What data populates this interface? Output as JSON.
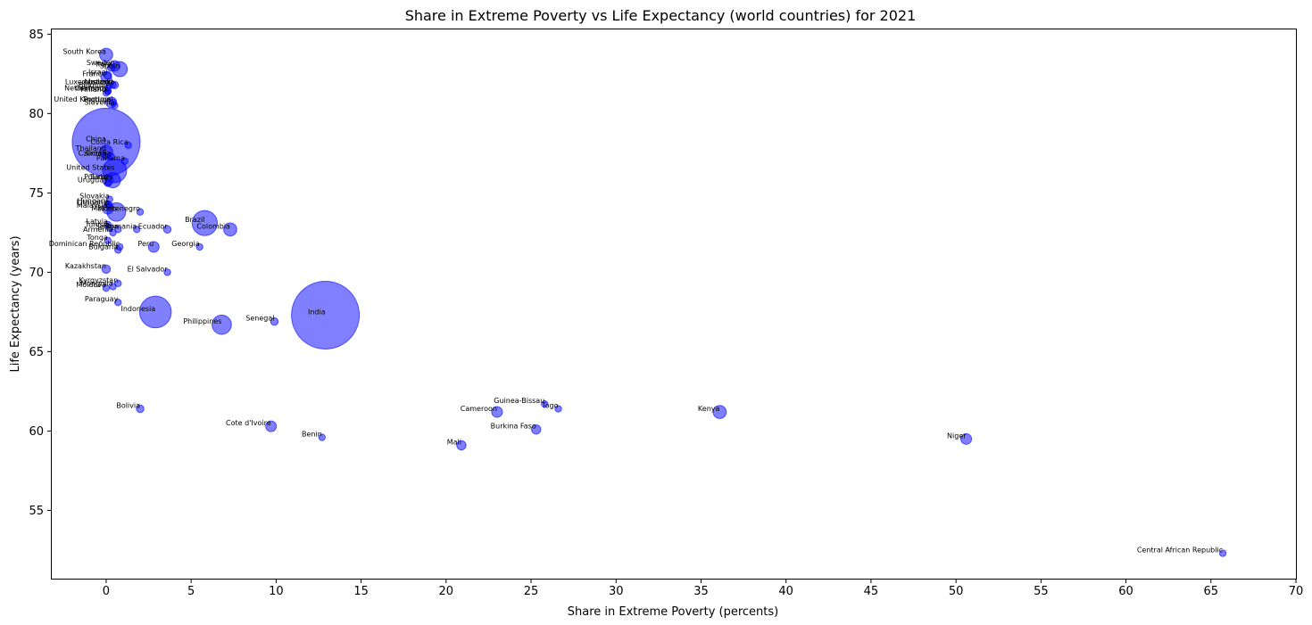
{
  "chart_data": {
    "type": "scatter",
    "title": "Share in Extreme Poverty vs Life Expectancy (world countries) for 2021",
    "xlabel": "Share in Extreme Poverty (percents)",
    "ylabel": "Life Expectancy (years)",
    "xlim": [
      -3.2,
      70
    ],
    "ylim": [
      50.7,
      85.3
    ],
    "xticks": [
      0,
      5,
      10,
      15,
      20,
      25,
      30,
      35,
      40,
      45,
      50,
      55,
      60,
      65,
      70
    ],
    "yticks": [
      55,
      60,
      65,
      70,
      75,
      80,
      85
    ],
    "grid": false,
    "marker_color": "#0000ff",
    "marker_alpha": 0.5,
    "points": [
      {
        "label": "South Korea",
        "x": 0.0,
        "y": 83.7,
        "s": 60
      },
      {
        "label": "Sweden",
        "x": 0.5,
        "y": 83.0,
        "s": 40
      },
      {
        "label": "Spain",
        "x": 0.8,
        "y": 82.8,
        "s": 80
      },
      {
        "label": "Italy",
        "x": 0.3,
        "y": 82.9,
        "s": 20
      },
      {
        "label": "Israel",
        "x": 0.1,
        "y": 82.4,
        "s": 20
      },
      {
        "label": "France",
        "x": 0.0,
        "y": 82.3,
        "s": 40
      },
      {
        "label": "Luxembourg",
        "x": 0.2,
        "y": 81.8,
        "s": 15
      },
      {
        "label": "Ireland",
        "x": 0.4,
        "y": 81.8,
        "s": 15
      },
      {
        "label": "Australia",
        "x": 0.5,
        "y": 81.8,
        "s": 20
      },
      {
        "label": "Belgium",
        "x": 0.1,
        "y": 81.6,
        "s": 15
      },
      {
        "label": "Netherlands",
        "x": 0.1,
        "y": 81.4,
        "s": 15
      },
      {
        "label": "Finland",
        "x": 0.0,
        "y": 81.3,
        "s": 15
      },
      {
        "label": "Germany",
        "x": 0.1,
        "y": 81.4,
        "s": 15
      },
      {
        "label": "United Kingdom",
        "x": 0.3,
        "y": 80.7,
        "s": 40
      },
      {
        "label": "Portugal",
        "x": 0.4,
        "y": 80.7,
        "s": 15
      },
      {
        "label": "Slovenia",
        "x": 0.5,
        "y": 80.5,
        "s": 15
      },
      {
        "label": "China",
        "x": 0.0,
        "y": 78.2,
        "s": 1600
      },
      {
        "label": "Costa Rica",
        "x": 1.3,
        "y": 78.0,
        "s": 15
      },
      {
        "label": "Thailand",
        "x": 0.0,
        "y": 77.6,
        "s": 60
      },
      {
        "label": "Croatia",
        "x": 0.3,
        "y": 77.3,
        "s": 15
      },
      {
        "label": "Czechia",
        "x": 0.0,
        "y": 77.3,
        "s": 15
      },
      {
        "label": "Panama",
        "x": 1.1,
        "y": 77.0,
        "s": 15
      },
      {
        "label": "United States",
        "x": 0.5,
        "y": 76.4,
        "s": 200
      },
      {
        "label": "Poland",
        "x": 0.1,
        "y": 75.8,
        "s": 40
      },
      {
        "label": "Turkey",
        "x": 0.4,
        "y": 75.8,
        "s": 80
      },
      {
        "label": "Uruguay",
        "x": 0.1,
        "y": 75.6,
        "s": 15
      },
      {
        "label": "Slovakia",
        "x": 0.2,
        "y": 74.6,
        "s": 15
      },
      {
        "label": "Hungary",
        "x": 0.1,
        "y": 74.3,
        "s": 15
      },
      {
        "label": "Lithuania",
        "x": 0.2,
        "y": 74.2,
        "s": 15
      },
      {
        "label": "Malaysia",
        "x": 0.1,
        "y": 74.0,
        "s": 40
      },
      {
        "label": "Mexico",
        "x": 0.6,
        "y": 73.8,
        "s": 120
      },
      {
        "label": "Montenegro",
        "x": 2.0,
        "y": 73.8,
        "s": 15
      },
      {
        "label": "Brazil",
        "x": 5.8,
        "y": 73.1,
        "s": 220
      },
      {
        "label": "Colombia",
        "x": 7.3,
        "y": 72.7,
        "s": 60
      },
      {
        "label": "Latvia",
        "x": 0.1,
        "y": 73.0,
        "s": 15
      },
      {
        "label": "Tunisia",
        "x": 0.2,
        "y": 72.8,
        "s": 15
      },
      {
        "label": "Serbia",
        "x": 0.7,
        "y": 72.7,
        "s": 15
      },
      {
        "label": "Romania",
        "x": 1.8,
        "y": 72.7,
        "s": 15
      },
      {
        "label": "Ecuador",
        "x": 3.6,
        "y": 72.7,
        "s": 20
      },
      {
        "label": "Armenia",
        "x": 0.4,
        "y": 72.5,
        "s": 15
      },
      {
        "label": "Tonga",
        "x": 0.1,
        "y": 72.0,
        "s": 15
      },
      {
        "label": "Dominican Republic",
        "x": 0.8,
        "y": 71.6,
        "s": 15
      },
      {
        "label": "Bulgaria",
        "x": 0.7,
        "y": 71.4,
        "s": 15
      },
      {
        "label": "Peru",
        "x": 2.8,
        "y": 71.6,
        "s": 40
      },
      {
        "label": "Georgia",
        "x": 5.5,
        "y": 71.6,
        "s": 15
      },
      {
        "label": "Kazakhstan",
        "x": 0.0,
        "y": 70.2,
        "s": 25
      },
      {
        "label": "El Salvador",
        "x": 3.6,
        "y": 70.0,
        "s": 15
      },
      {
        "label": "Kyrgyzstan",
        "x": 0.7,
        "y": 69.3,
        "s": 15
      },
      {
        "label": "Mongolia",
        "x": 0.4,
        "y": 69.1,
        "s": 15
      },
      {
        "label": "Moldova",
        "x": 0.0,
        "y": 69.0,
        "s": 15
      },
      {
        "label": "Paraguay",
        "x": 0.7,
        "y": 68.1,
        "s": 15
      },
      {
        "label": "Indonesia",
        "x": 2.9,
        "y": 67.5,
        "s": 350
      },
      {
        "label": "India",
        "x": 12.9,
        "y": 67.3,
        "s": 1600
      },
      {
        "label": "Philippines",
        "x": 6.8,
        "y": 66.7,
        "s": 130
      },
      {
        "label": "Senegal",
        "x": 9.9,
        "y": 66.9,
        "s": 20
      },
      {
        "label": "Guinea-Bissau",
        "x": 25.8,
        "y": 61.7,
        "s": 15
      },
      {
        "label": "Togo",
        "x": 26.6,
        "y": 61.4,
        "s": 15
      },
      {
        "label": "Cameroon",
        "x": 23.0,
        "y": 61.2,
        "s": 40
      },
      {
        "label": "Kenya",
        "x": 36.1,
        "y": 61.2,
        "s": 60
      },
      {
        "label": "Bolivia",
        "x": 2.0,
        "y": 61.4,
        "s": 20
      },
      {
        "label": "Cote d'Ivoire",
        "x": 9.7,
        "y": 60.3,
        "s": 40
      },
      {
        "label": "Burkina Faso",
        "x": 25.3,
        "y": 60.1,
        "s": 30
      },
      {
        "label": "Benin",
        "x": 12.7,
        "y": 59.6,
        "s": 15
      },
      {
        "label": "Niger",
        "x": 50.6,
        "y": 59.5,
        "s": 40
      },
      {
        "label": "Mali",
        "x": 20.9,
        "y": 59.1,
        "s": 30
      },
      {
        "label": "Central African Republic",
        "x": 65.7,
        "y": 52.3,
        "s": 15
      }
    ]
  }
}
